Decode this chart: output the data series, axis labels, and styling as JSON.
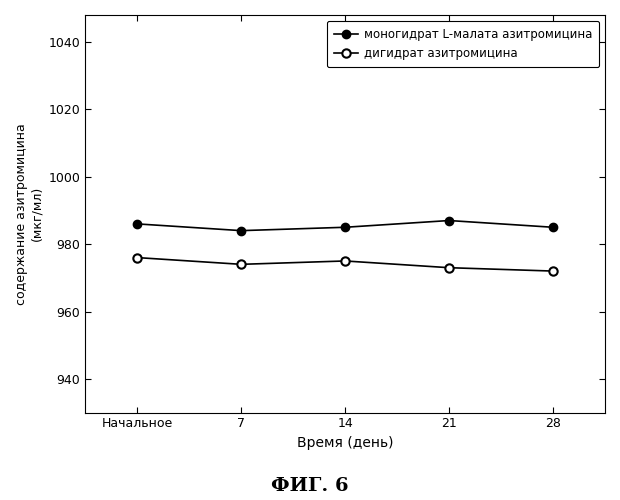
{
  "x_positions": [
    0,
    1,
    2,
    3,
    4
  ],
  "x_labels": [
    "Начальное",
    "7",
    "14",
    "21",
    "28"
  ],
  "series1_values": [
    986,
    984,
    985,
    987,
    985
  ],
  "series2_values": [
    976,
    974,
    975,
    973,
    972
  ],
  "series1_label": "моногидрат L-малата азитромицина",
  "series2_label": "дигидрат азитромицина",
  "ylabel_line1": "содержание азитромицина",
  "ylabel_line2": "(мкг/мл)",
  "xlabel": "Время (день)",
  "caption": "ФИГ. 6",
  "ylim": [
    930,
    1048
  ],
  "yticks": [
    940,
    960,
    980,
    1000,
    1020,
    1040
  ],
  "color1": "#000000",
  "color2": "#000000",
  "bg_color": "#ffffff",
  "linewidth": 1.2,
  "markersize": 6
}
